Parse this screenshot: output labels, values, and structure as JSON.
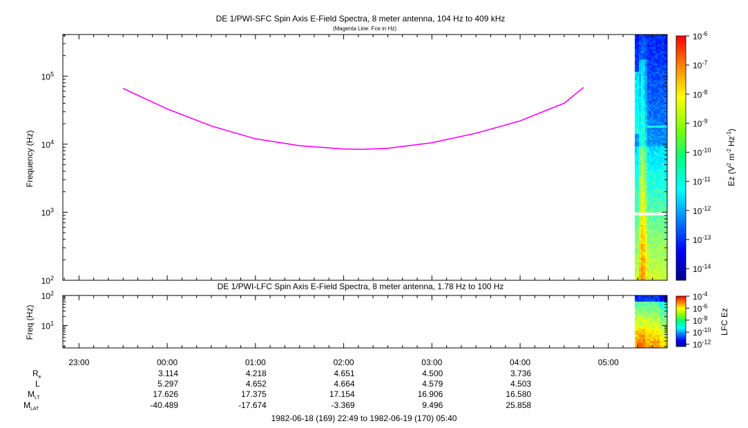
{
  "chart_data": [
    {
      "type": "heatmap",
      "title": "DE 1/PWI-SFC  Spin Axis E-Field Spectra, 8 meter antenna, 104 Hz to 409 kHz",
      "subtitle": "(Magenta Line: Fce in Hz)",
      "ylabel": "Frequency (Hz)",
      "yscale": "log",
      "ylim": [
        100,
        409000
      ],
      "yticks": [
        {
          "base": "10",
          "exp": "2",
          "value": 100
        },
        {
          "base": "10",
          "exp": "3",
          "value": 1000
        },
        {
          "base": "10",
          "exp": "4",
          "value": 10000
        },
        {
          "base": "10",
          "exp": "5",
          "value": 100000
        }
      ],
      "fce_line": {
        "color": "#ff00ff",
        "time_hours": [
          -0.5,
          -0.3,
          0.0,
          0.5,
          1.0,
          1.5,
          2.0,
          2.2,
          2.5,
          3.0,
          3.5,
          4.0,
          4.5,
          4.72
        ],
        "freq_hz": [
          66000,
          50000,
          33000,
          18500,
          12000,
          9500,
          8500,
          8400,
          8700,
          10500,
          14500,
          22000,
          40000,
          68000
        ]
      },
      "data_window_hours": [
        5.3,
        5.67
      ],
      "colorbar": {
        "label": "Ez (V",
        "label_sup1": "2",
        "label_mid": " m",
        "label_sup2": "-2",
        "label_mid2": " Hz",
        "label_sup3": "-1",
        "label_end": ")",
        "range_log10": [
          -14.4,
          -6
        ],
        "ticks": [
          {
            "base": "10",
            "exp": "-6"
          },
          {
            "base": "10",
            "exp": "-7"
          },
          {
            "base": "10",
            "exp": "-8"
          },
          {
            "base": "10",
            "exp": "-9"
          },
          {
            "base": "10",
            "exp": "-10"
          },
          {
            "base": "10",
            "exp": "-11"
          },
          {
            "base": "10",
            "exp": "-12"
          },
          {
            "base": "10",
            "exp": "-13"
          },
          {
            "base": "10",
            "exp": "-14"
          }
        ]
      }
    },
    {
      "type": "heatmap",
      "title": "DE 1/PWI-LFC  Spin Axis E-Field Spectra, 8 meter antenna, 1.78 Hz to 100 Hz",
      "ylabel": "Freq (Hz)",
      "yscale": "log",
      "ylim": [
        1.78,
        100
      ],
      "yticks": [
        {
          "base": "10",
          "exp": "1",
          "value": 10
        },
        {
          "base": "10",
          "exp": "2",
          "value": 100
        }
      ],
      "data_window_hours": [
        5.3,
        5.67
      ],
      "colorbar": {
        "label": "LFC Ez",
        "range_log10": [
          -12.4,
          -4
        ],
        "ticks": [
          {
            "base": "10",
            "exp": "-4"
          },
          {
            "base": "10",
            "exp": "-6"
          },
          {
            "base": "10",
            "exp": "-8"
          },
          {
            "base": "10",
            "exp": "-10"
          },
          {
            "base": "10",
            "exp": "-12"
          }
        ]
      }
    }
  ],
  "xaxis": {
    "xlim_hours": [
      -1.183,
      5.667
    ],
    "tick_labels": [
      "23:00",
      "00:00",
      "01:00",
      "02:00",
      "03:00",
      "04:00",
      "05:00"
    ],
    "tick_hours": [
      -1,
      0,
      1,
      2,
      3,
      4,
      5
    ]
  },
  "ephemeris": {
    "hours": [
      0,
      1,
      2,
      3,
      4
    ],
    "rows": [
      {
        "label": "R",
        "sub": "e",
        "values": [
          "3.114",
          "4.218",
          "4.651",
          "4.500",
          "3.736"
        ]
      },
      {
        "label": "L",
        "sub": "",
        "values": [
          "5.297",
          "4.652",
          "4.664",
          "4.579",
          "4.503"
        ]
      },
      {
        "label": "M",
        "sub": "LT",
        "values": [
          "17.626",
          "17.375",
          "17.154",
          "16.906",
          "16.580"
        ]
      },
      {
        "label": "M",
        "sub": "LAT",
        "values": [
          "-40.489",
          "-17.674",
          "-3.369",
          "9.496",
          "25.858"
        ]
      }
    ]
  },
  "footer": "1982-06-18 (169) 22:49 to 1982-06-19 (170) 05:40"
}
